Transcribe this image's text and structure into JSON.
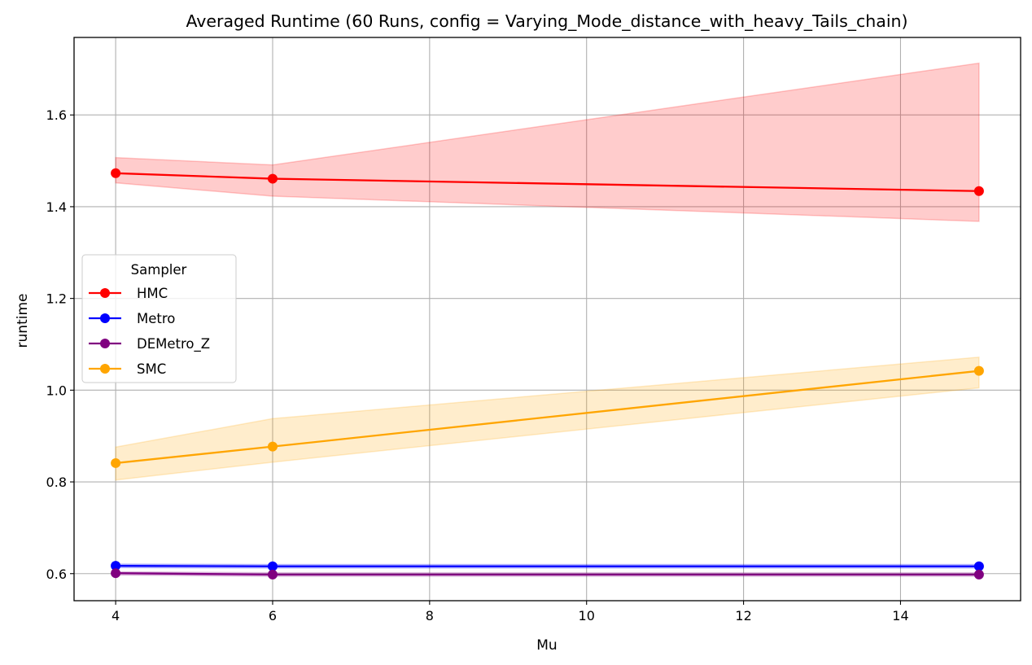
{
  "chart_data": {
    "type": "line",
    "title": "Averaged Runtime (60 Runs, config = Varying_Mode_distance_with_heavy_Tails_chain)",
    "xlabel": "Mu",
    "ylabel": "runtime",
    "xlim": [
      3.47,
      15.53
    ],
    "ylim": [
      0.541,
      1.769
    ],
    "xticks": [
      4,
      6,
      8,
      10,
      12,
      14
    ],
    "yticks": [
      0.6,
      0.8,
      1.0,
      1.2,
      1.4,
      1.6
    ],
    "ytick_labels": [
      "0.6",
      "0.8",
      "1.0",
      "1.2",
      "1.4",
      "1.6"
    ],
    "grid": true,
    "legend": {
      "title": "Sampler",
      "placement": "center-left"
    },
    "x": [
      4,
      6,
      15
    ],
    "series": [
      {
        "name": "HMC",
        "color": "#ff0000",
        "band_color": "#ffcccc",
        "values": [
          1.473,
          1.461,
          1.434
        ],
        "lower": [
          1.452,
          1.423,
          1.368
        ],
        "upper": [
          1.507,
          1.491,
          1.713
        ]
      },
      {
        "name": "Metro",
        "color": "#0000ff",
        "band_color": "#ccccff",
        "values": [
          0.617,
          0.616,
          0.616
        ],
        "lower": [
          0.613,
          0.612,
          0.612
        ],
        "upper": [
          0.621,
          0.62,
          0.62
        ]
      },
      {
        "name": "DEMetro_Z",
        "color": "#800080",
        "band_color": "#e6cce6",
        "values": [
          0.601,
          0.598,
          0.598
        ],
        "lower": [
          0.597,
          0.594,
          0.594
        ],
        "upper": [
          0.604,
          0.602,
          0.602
        ]
      },
      {
        "name": "SMC",
        "color": "#ffa500",
        "band_color": "#ffedcc",
        "values": [
          0.841,
          0.877,
          1.042
        ],
        "lower": [
          0.804,
          0.843,
          1.005
        ],
        "upper": [
          0.876,
          0.938,
          1.072
        ]
      }
    ]
  }
}
